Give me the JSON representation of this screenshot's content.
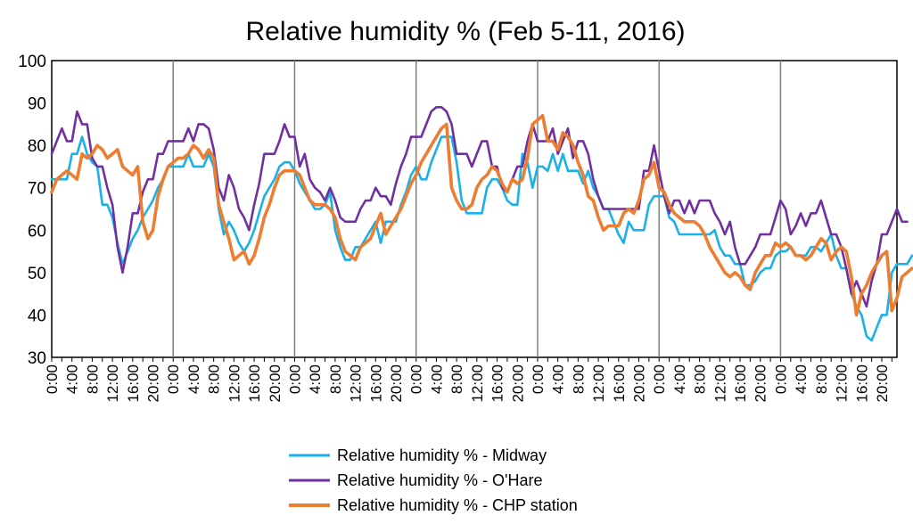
{
  "chart_data": {
    "type": "line",
    "title": "Relative humidity % (Feb 5-11, 2016)",
    "xlabel": "",
    "ylabel": "",
    "ylim": [
      30,
      100
    ],
    "yticks": [
      30,
      40,
      50,
      60,
      70,
      80,
      90,
      100
    ],
    "x_tick_labels": [
      "0:00",
      "4:00",
      "8:00",
      "12:00",
      "16:00",
      "20:00"
    ],
    "hours_per_day": 24,
    "days": 7,
    "day_separators": true,
    "legend_position": "bottom",
    "grid": false,
    "series": [
      {
        "name": "Relative humidity % - Midway",
        "color": "#1ab0e8",
        "values": [
          72,
          72,
          72,
          72,
          78,
          78,
          82,
          78,
          76,
          75,
          66,
          66,
          63,
          57,
          52,
          55,
          58,
          60,
          63,
          65,
          67,
          70,
          72,
          75,
          75,
          75,
          75,
          78,
          75,
          75,
          75,
          78,
          75,
          65,
          59,
          62,
          60,
          57,
          55,
          57,
          60,
          64,
          68,
          70,
          72,
          75,
          76,
          76,
          74,
          71,
          69,
          67,
          65,
          65,
          66,
          69,
          60,
          56,
          53,
          53,
          56,
          56,
          58,
          60,
          62,
          57,
          62,
          62,
          62,
          66,
          69,
          73,
          75,
          72,
          72,
          76,
          79,
          82,
          82,
          82,
          76,
          67,
          64,
          64,
          64,
          64,
          70,
          72,
          72,
          70,
          67,
          66,
          66,
          78,
          76,
          70,
          75,
          75,
          74,
          78,
          74,
          78,
          74,
          74,
          74,
          71,
          74,
          70,
          68,
          65,
          65,
          62,
          59,
          57,
          62,
          60,
          60,
          60,
          66,
          68,
          68,
          68,
          63,
          62,
          59,
          59,
          59,
          59,
          59,
          59,
          59,
          60,
          56,
          54,
          54,
          52,
          52,
          47,
          47,
          48,
          50,
          51,
          51,
          54,
          55,
          55,
          56,
          54,
          54,
          54,
          56,
          56,
          55,
          57,
          59,
          54,
          51,
          51,
          45,
          42,
          40,
          35,
          34,
          37,
          40,
          40,
          50,
          52,
          52,
          52,
          54
        ]
      },
      {
        "name": "Relative humidity % - O'Hare",
        "color": "#7030a0",
        "values": [
          78,
          81,
          84,
          81,
          81,
          88,
          85,
          85,
          77,
          75,
          75,
          70,
          66,
          56,
          50,
          56,
          64,
          64,
          69,
          72,
          72,
          78,
          78,
          81,
          81,
          81,
          81,
          84,
          81,
          85,
          85,
          84,
          79,
          70,
          67,
          73,
          70,
          65,
          63,
          60,
          66,
          71,
          78,
          78,
          78,
          81,
          85,
          82,
          82,
          75,
          78,
          72,
          70,
          69,
          67,
          70,
          67,
          63,
          62,
          62,
          62,
          65,
          67,
          67,
          70,
          68,
          68,
          66,
          71,
          75,
          78,
          82,
          82,
          82,
          85,
          88,
          89,
          89,
          88,
          85,
          78,
          78,
          78,
          75,
          78,
          81,
          81,
          75,
          75,
          70,
          69,
          72,
          75,
          75,
          81,
          85,
          81,
          81,
          81,
          84,
          78,
          81,
          84,
          77,
          81,
          81,
          78,
          72,
          68,
          65,
          65,
          65,
          65,
          65,
          65,
          65,
          65,
          74,
          74,
          80,
          74,
          68,
          64,
          67,
          67,
          64,
          67,
          64,
          67,
          67,
          67,
          64,
          62,
          59,
          62,
          56,
          52,
          52,
          54,
          56,
          59,
          59,
          59,
          63,
          67,
          65,
          59,
          61,
          64,
          61,
          64,
          64,
          67,
          63,
          59,
          59,
          56,
          51,
          45,
          48,
          45,
          42,
          48,
          52,
          59,
          59,
          62,
          65,
          62,
          62
        ]
      },
      {
        "name": "Relative humidity % - CHP station",
        "color": "#ed7d31",
        "values": [
          69,
          72,
          73,
          74,
          73,
          72,
          78,
          77,
          78,
          80,
          79,
          77,
          78,
          79,
          75,
          74,
          73,
          75,
          62,
          58,
          60,
          68,
          72,
          75,
          76,
          77,
          77,
          78,
          80,
          79,
          77,
          79,
          77,
          66,
          62,
          58,
          53,
          54,
          55,
          52,
          54,
          58,
          63,
          66,
          70,
          73,
          74,
          74,
          74,
          73,
          70,
          67,
          66,
          66,
          66,
          65,
          63,
          58,
          55,
          54,
          53,
          56,
          57,
          58,
          61,
          64,
          59,
          61,
          63,
          65,
          68,
          71,
          73,
          76,
          78,
          80,
          82,
          84,
          85,
          70,
          67,
          65,
          65,
          66,
          70,
          72,
          73,
          75,
          74,
          71,
          69,
          72,
          71,
          72,
          77,
          85,
          86,
          87,
          81,
          81,
          79,
          83,
          82,
          80,
          76,
          73,
          68,
          67,
          63,
          60,
          61,
          61,
          61,
          64,
          65,
          64,
          67,
          72,
          73,
          76,
          70,
          69,
          66,
          64,
          63,
          62,
          62,
          62,
          61,
          59,
          56,
          54,
          52,
          50,
          49,
          50,
          49,
          47,
          46,
          50,
          52,
          54,
          54,
          57,
          56,
          57,
          56,
          54,
          54,
          53,
          54,
          56,
          58,
          57,
          53,
          55,
          56,
          55,
          49,
          40,
          45,
          47,
          50,
          52,
          54,
          55,
          41,
          44,
          49,
          50,
          51
        ]
      }
    ]
  }
}
